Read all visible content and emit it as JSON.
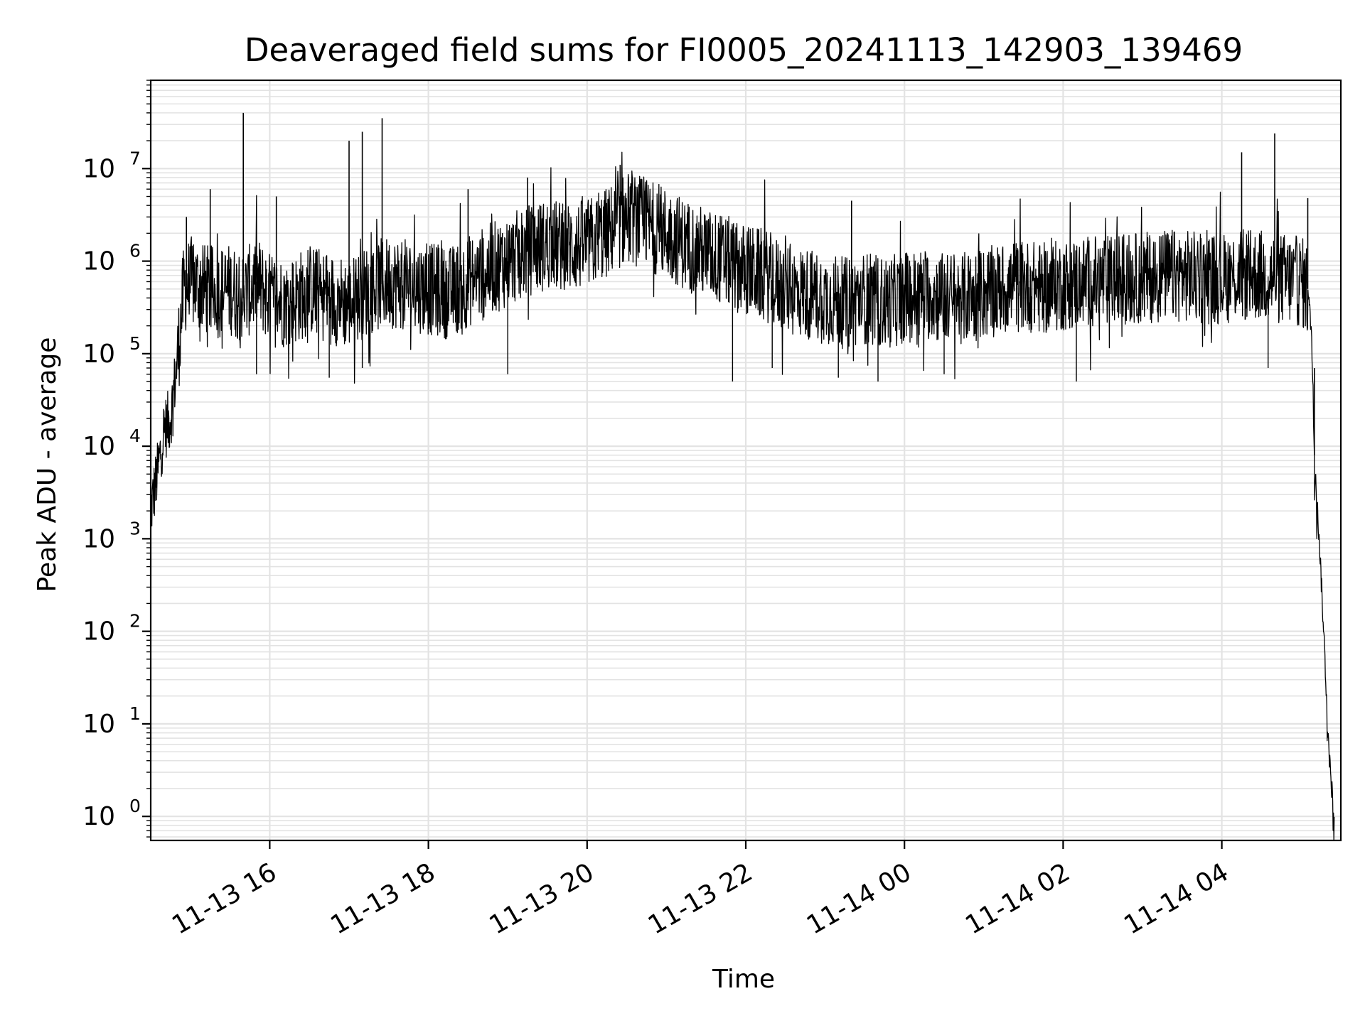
{
  "chart_data": {
    "type": "line",
    "title": "Deaveraged field sums for FI0005_20241113_142903_139469",
    "xlabel": "Time",
    "ylabel": "Peak ADU - average",
    "yscale": "log",
    "ylim": [
      0.55,
      90000000
    ],
    "xlim": [
      "11-13 14:30",
      "11-14 05:30"
    ],
    "grid": true,
    "line_color": "#000000",
    "grid_color": "#e3e3e3",
    "x_ticks": [
      {
        "label": "11-13 16",
        "value": "11-13 16:00"
      },
      {
        "label": "11-13 18",
        "value": "11-13 18:00"
      },
      {
        "label": "11-13 20",
        "value": "11-13 20:00"
      },
      {
        "label": "11-13 22",
        "value": "11-13 22:00"
      },
      {
        "label": "11-14 00",
        "value": "11-14 00:00"
      },
      {
        "label": "11-14 02",
        "value": "11-14 02:00"
      },
      {
        "label": "11-14 04",
        "value": "11-14 04:00"
      }
    ],
    "y_ticks": [
      {
        "base": "10",
        "exp": "0",
        "value": 1
      },
      {
        "base": "10",
        "exp": "1",
        "value": 10
      },
      {
        "base": "10",
        "exp": "2",
        "value": 100
      },
      {
        "base": "10",
        "exp": "3",
        "value": 1000
      },
      {
        "base": "10",
        "exp": "4",
        "value": 10000
      },
      {
        "base": "10",
        "exp": "5",
        "value": 100000
      },
      {
        "base": "10",
        "exp": "6",
        "value": 1000000
      },
      {
        "base": "10",
        "exp": "7",
        "value": 10000000
      }
    ],
    "series": [
      {
        "color": "#000000",
        "x": [
          "11-13 14:30",
          "11-13 14:35",
          "11-13 14:40",
          "11-13 14:45",
          "11-13 14:50",
          "11-13 14:55",
          "11-13 15:00",
          "11-13 15:10",
          "11-13 15:20",
          "11-13 15:30",
          "11-13 15:40",
          "11-13 15:50",
          "11-13 16:00",
          "11-13 16:15",
          "11-13 16:30",
          "11-13 16:45",
          "11-13 17:00",
          "11-13 17:15",
          "11-13 17:30",
          "11-13 17:45",
          "11-13 18:00",
          "11-13 18:15",
          "11-13 18:30",
          "11-13 18:45",
          "11-13 19:00",
          "11-13 19:15",
          "11-13 19:30",
          "11-13 19:45",
          "11-13 20:00",
          "11-13 20:15",
          "11-13 20:30",
          "11-13 20:45",
          "11-13 21:00",
          "11-13 21:15",
          "11-13 21:30",
          "11-13 21:45",
          "11-13 22:00",
          "11-13 22:15",
          "11-13 22:30",
          "11-13 22:45",
          "11-13 23:00",
          "11-13 23:15",
          "11-13 23:30",
          "11-13 23:45",
          "11-14 00:00",
          "11-14 00:15",
          "11-14 00:30",
          "11-14 00:45",
          "11-14 01:00",
          "11-14 01:15",
          "11-14 01:30",
          "11-14 01:45",
          "11-14 02:00",
          "11-14 02:15",
          "11-14 02:30",
          "11-14 02:45",
          "11-14 03:00",
          "11-14 03:15",
          "11-14 03:30",
          "11-14 03:45",
          "11-14 04:00",
          "11-14 04:15",
          "11-14 04:30",
          "11-14 04:45",
          "11-14 05:00",
          "11-14 05:05",
          "11-14 05:08",
          "11-14 05:10",
          "11-14 05:12",
          "11-14 05:14",
          "11-14 05:16",
          "11-14 05:18",
          "11-14 05:20",
          "11-14 05:22",
          "11-14 05:24",
          "11-14 05:25"
        ],
        "y": [
          2000,
          5000,
          15000,
          20000,
          80000,
          500000,
          600000,
          500000,
          450000,
          500000,
          400000,
          600000,
          400000,
          350000,
          500000,
          400000,
          350000,
          500000,
          600000,
          550000,
          500000,
          450000,
          600000,
          800000,
          1000000,
          1300000,
          1500000,
          1400000,
          1500000,
          2000000,
          3000000,
          2500000,
          2000000,
          1500000,
          1200000,
          1000000,
          800000,
          700000,
          500000,
          450000,
          400000,
          350000,
          400000,
          350000,
          400000,
          450000,
          400000,
          400000,
          450000,
          500000,
          550000,
          500000,
          550000,
          600000,
          600000,
          650000,
          650000,
          700000,
          700000,
          650000,
          650000,
          700000,
          700000,
          650000,
          600000,
          500000,
          150000,
          8000,
          2500,
          800,
          200,
          50,
          10,
          3,
          1.5,
          0.8
        ],
        "spikes": [
          {
            "x": "11-13 14:57",
            "y": 3000000
          },
          {
            "x": "11-13 15:15",
            "y": 6000000
          },
          {
            "x": "11-13 15:40",
            "y": 40000000
          },
          {
            "x": "11-13 16:05",
            "y": 5000000
          },
          {
            "x": "11-13 17:00",
            "y": 20000000
          },
          {
            "x": "11-13 17:10",
            "y": 25000000
          },
          {
            "x": "11-13 17:25",
            "y": 35000000
          },
          {
            "x": "11-13 18:30",
            "y": 6000000
          },
          {
            "x": "11-13 19:15",
            "y": 8000000
          },
          {
            "x": "11-13 20:25",
            "y": 11000000
          },
          {
            "x": "11-13 23:20",
            "y": 4500000
          },
          {
            "x": "11-14 04:15",
            "y": 15000000
          },
          {
            "x": "11-14 04:40",
            "y": 24000000
          },
          {
            "x": "11-14 05:05",
            "y": 4800000
          },
          {
            "x": "11-14 05:10",
            "y": 70000
          }
        ],
        "dips": [
          {
            "x": "11-13 15:50",
            "y": 60000
          },
          {
            "x": "11-13 16:45",
            "y": 55000
          },
          {
            "x": "11-13 17:10",
            "y": 70000
          },
          {
            "x": "11-13 19:00",
            "y": 60000
          },
          {
            "x": "11-13 21:50",
            "y": 50000
          },
          {
            "x": "11-13 22:20",
            "y": 70000
          },
          {
            "x": "11-13 23:10",
            "y": 55000
          },
          {
            "x": "11-13 23:40",
            "y": 50000
          },
          {
            "x": "11-14 00:30",
            "y": 60000
          },
          {
            "x": "11-14 02:10",
            "y": 50000
          },
          {
            "x": "11-14 04:35",
            "y": 70000
          }
        ]
      }
    ]
  }
}
